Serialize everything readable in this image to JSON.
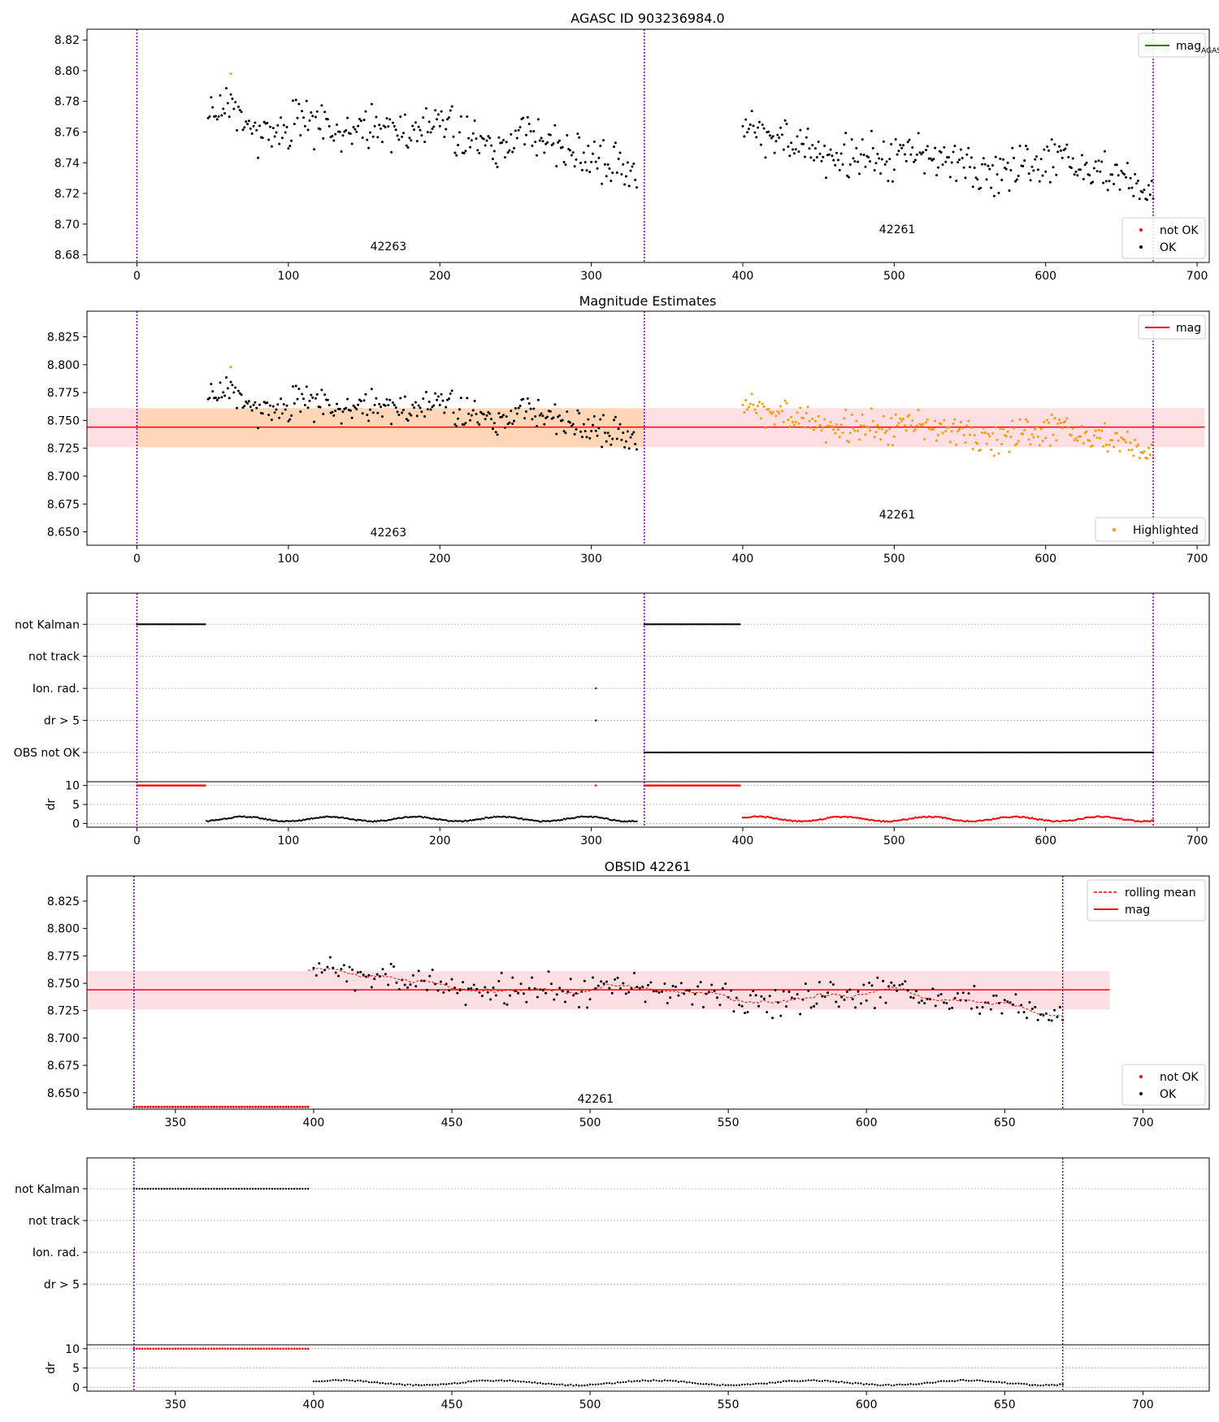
{
  "colors": {
    "ok": "#000000",
    "not_ok": "#ff0000",
    "highlight": "#ff9900",
    "mag_line_agasc": "#1a7f1a",
    "mag_line": "#ff0000",
    "band_pink": "#f9c9d0",
    "band_orange": "#ffd6b0",
    "obs_boundary": "#7a00a0",
    "grid": "#bbbbbb",
    "axis": "#000000"
  },
  "chart_data": [
    {
      "id": "panel1",
      "type": "scatter",
      "title": "AGASC ID 903236984.0",
      "xlim": [
        -33,
        708
      ],
      "ylim": [
        8.675,
        8.827
      ],
      "xticks": [
        0,
        100,
        200,
        300,
        400,
        500,
        600,
        700
      ],
      "yticks": [
        8.68,
        8.7,
        8.72,
        8.74,
        8.76,
        8.78,
        8.8,
        8.82
      ],
      "ytick_decimals": 2,
      "obs_boundaries": [
        0,
        335,
        671
      ],
      "obs_labels": [
        {
          "text": "42263",
          "x": 166,
          "y": 8.683
        },
        {
          "text": "42261",
          "x": 502,
          "y": 8.694
        }
      ],
      "series": [
        {
          "name": "OK",
          "color_key": "ok",
          "gen": "mag",
          "x_start": 47,
          "x_end": 330,
          "step": 1
        },
        {
          "name": "OK",
          "color_key": "ok",
          "gen": "mag",
          "x_start": 400,
          "x_end": 671,
          "step": 1
        }
      ],
      "extra_points": [
        {
          "x": 62,
          "y": 8.798,
          "color_key": "highlight"
        }
      ],
      "legend_top": [
        {
          "label": "mag",
          "sub": "AGASC",
          "kind": "line",
          "color_key": "mag_line_agasc"
        }
      ],
      "legend_bottom": [
        {
          "label": "not OK",
          "kind": "dot",
          "color_key": "not_ok"
        },
        {
          "label": "OK",
          "kind": "dot",
          "color_key": "ok"
        }
      ]
    },
    {
      "id": "panel2",
      "type": "scatter",
      "title": "Magnitude Estimates",
      "xlim": [
        -33,
        708
      ],
      "ylim": [
        8.638,
        8.848
      ],
      "xticks": [
        0,
        100,
        200,
        300,
        400,
        500,
        600,
        700
      ],
      "yticks": [
        8.65,
        8.675,
        8.7,
        8.725,
        8.75,
        8.775,
        8.8,
        8.825
      ],
      "ytick_decimals": 3,
      "obs_boundaries": [
        0,
        335,
        671
      ],
      "obs_labels": [
        {
          "text": "42263",
          "x": 166,
          "y": 8.646
        },
        {
          "text": "42261",
          "x": 502,
          "y": 8.662
        }
      ],
      "bands": [
        {
          "x0": -33,
          "x1": 705,
          "y0": 8.726,
          "y1": 8.761,
          "color_key": "band_pink"
        },
        {
          "x0": 0,
          "x1": 335,
          "y0": 8.726,
          "y1": 8.761,
          "color_key": "band_orange"
        }
      ],
      "hlines": [
        {
          "y": 8.744,
          "x0": -33,
          "x1": 705,
          "color_key": "mag_line"
        }
      ],
      "series": [
        {
          "name": "OK",
          "color_key": "ok",
          "gen": "mag",
          "x_start": 47,
          "x_end": 330,
          "step": 1
        },
        {
          "name": "Highlighted",
          "color_key": "highlight",
          "gen": "mag",
          "x_start": 400,
          "x_end": 671,
          "step": 1
        }
      ],
      "extra_points": [
        {
          "x": 62,
          "y": 8.798,
          "color_key": "highlight"
        }
      ],
      "legend_top": [
        {
          "label": "mag",
          "kind": "line",
          "color_key": "mag_line"
        }
      ],
      "legend_bottom": [
        {
          "label": "Highlighted",
          "kind": "dot",
          "color_key": "highlight"
        }
      ]
    },
    {
      "id": "panel3",
      "type": "flags",
      "xlim": [
        -33,
        708
      ],
      "xticks": [
        0,
        100,
        200,
        300,
        400,
        500,
        600,
        700
      ],
      "obs_boundaries": [
        0,
        335,
        671
      ],
      "categories": [
        "not Kalman",
        "not track",
        "Ion. rad.",
        "dr > 5",
        "OBS not OK"
      ],
      "flag_series": [
        {
          "row": 0,
          "x_start": 0,
          "x_end": 45,
          "step": 1
        },
        {
          "row": 0,
          "x_start": 335,
          "x_end": 398,
          "step": 1
        },
        {
          "row": 2,
          "x_start": 303,
          "x_end": 303,
          "step": 1
        },
        {
          "row": 3,
          "x_start": 303,
          "x_end": 303,
          "step": 1
        },
        {
          "row": 4,
          "x_start": 335,
          "x_end": 671,
          "step": 1
        }
      ],
      "dr": {
        "ylim": [
          -1,
          11
        ],
        "yticks": [
          0,
          5,
          10
        ],
        "ylabel": "dr",
        "high": [
          {
            "x_start": 0,
            "x_end": 45,
            "step": 1,
            "value": 10,
            "color_key": "not_ok"
          },
          {
            "x_start": 303,
            "x_end": 303,
            "step": 1,
            "value": 10,
            "color_key": "not_ok"
          },
          {
            "x_start": 335,
            "x_end": 398,
            "step": 1,
            "value": 10,
            "color_key": "not_ok"
          }
        ],
        "low": [
          {
            "x_start": 46,
            "x_end": 330,
            "step": 1,
            "color_key": "ok"
          },
          {
            "x_start": 400,
            "x_end": 671,
            "step": 1,
            "color_key": "not_ok"
          }
        ]
      }
    },
    {
      "id": "panel4",
      "type": "scatter",
      "title": "OBSID 42261",
      "xlim": [
        318,
        724
      ],
      "ylim": [
        8.635,
        8.848
      ],
      "xticks": [
        350,
        400,
        450,
        500,
        550,
        600,
        650,
        700
      ],
      "yticks": [
        8.65,
        8.675,
        8.7,
        8.725,
        8.75,
        8.775,
        8.8,
        8.825
      ],
      "ytick_decimals": 3,
      "obs_boundaries": [
        335,
        671
      ],
      "obs_labels": [
        {
          "text": "42261",
          "x": 502,
          "y": 8.641
        }
      ],
      "bands": [
        {
          "x0": 318,
          "x1": 688,
          "y0": 8.726,
          "y1": 8.761,
          "color_key": "band_pink"
        }
      ],
      "hlines": [
        {
          "y": 8.744,
          "x0": 318,
          "x1": 688,
          "color_key": "mag_line"
        }
      ],
      "rolling": {
        "x_start": 398,
        "x_end": 671,
        "color_key": "mag_line",
        "label": "rolling mean"
      },
      "series": [
        {
          "name": "not OK",
          "color_key": "not_ok",
          "gen": "const",
          "value": 8.637,
          "x_start": 335,
          "x_end": 398,
          "step": 1
        },
        {
          "name": "OK",
          "color_key": "ok",
          "gen": "mag",
          "x_start": 400,
          "x_end": 671,
          "step": 1
        }
      ],
      "legend_top": [
        {
          "label": "rolling mean",
          "kind": "dashed",
          "color_key": "mag_line"
        },
        {
          "label": "mag",
          "kind": "line",
          "color_key": "mag_line"
        }
      ],
      "legend_bottom": [
        {
          "label": "not OK",
          "kind": "dot",
          "color_key": "not_ok"
        },
        {
          "label": "OK",
          "kind": "dot",
          "color_key": "ok"
        }
      ]
    },
    {
      "id": "panel5",
      "type": "flags",
      "xlim": [
        318,
        724
      ],
      "xticks": [
        350,
        400,
        450,
        500,
        550,
        600,
        650,
        700
      ],
      "obs_boundaries": [
        335,
        671
      ],
      "categories": [
        "not Kalman",
        "not track",
        "Ion. rad.",
        "dr > 5"
      ],
      "flag_series": [
        {
          "row": 0,
          "x_start": 335,
          "x_end": 398,
          "step": 1
        }
      ],
      "dr": {
        "ylim": [
          -1,
          11
        ],
        "yticks": [
          0,
          5,
          10
        ],
        "ylabel": "dr",
        "high": [
          {
            "x_start": 335,
            "x_end": 398,
            "step": 1,
            "value": 10,
            "color_key": "not_ok"
          }
        ],
        "low": [
          {
            "x_start": 400,
            "x_end": 671,
            "step": 1,
            "color_key": "ok"
          }
        ]
      }
    }
  ]
}
